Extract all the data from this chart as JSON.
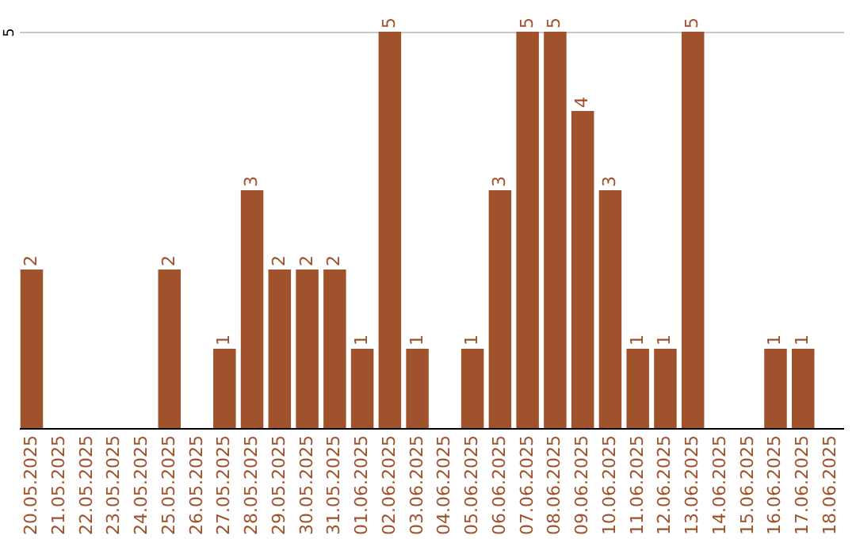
{
  "chart_data": {
    "type": "bar",
    "categories": [
      "20.05.2025",
      "21.05.2025",
      "22.05.2025",
      "23.05.2025",
      "24.05.2025",
      "25.05.2025",
      "26.05.2025",
      "27.05.2025",
      "28.05.2025",
      "29.05.2025",
      "30.05.2025",
      "31.05.2025",
      "01.06.2025",
      "02.06.2025",
      "03.06.2025",
      "04.06.2025",
      "05.06.2025",
      "06.06.2025",
      "07.06.2025",
      "08.06.2025",
      "09.06.2025",
      "10.06.2025",
      "11.06.2025",
      "12.06.2025",
      "13.06.2025",
      "14.06.2025",
      "15.06.2025",
      "16.06.2025",
      "17.06.2025",
      "18.06.2025"
    ],
    "values": [
      2,
      null,
      null,
      null,
      null,
      2,
      null,
      1,
      3,
      2,
      2,
      2,
      1,
      5,
      1,
      null,
      1,
      3,
      5,
      5,
      4,
      3,
      1,
      1,
      5,
      null,
      null,
      1,
      1,
      null
    ],
    "color": "#a0522d",
    "ylim": [
      0,
      5.4
    ],
    "yticks": [
      5
    ],
    "grid": "y",
    "data_labels": true
  }
}
